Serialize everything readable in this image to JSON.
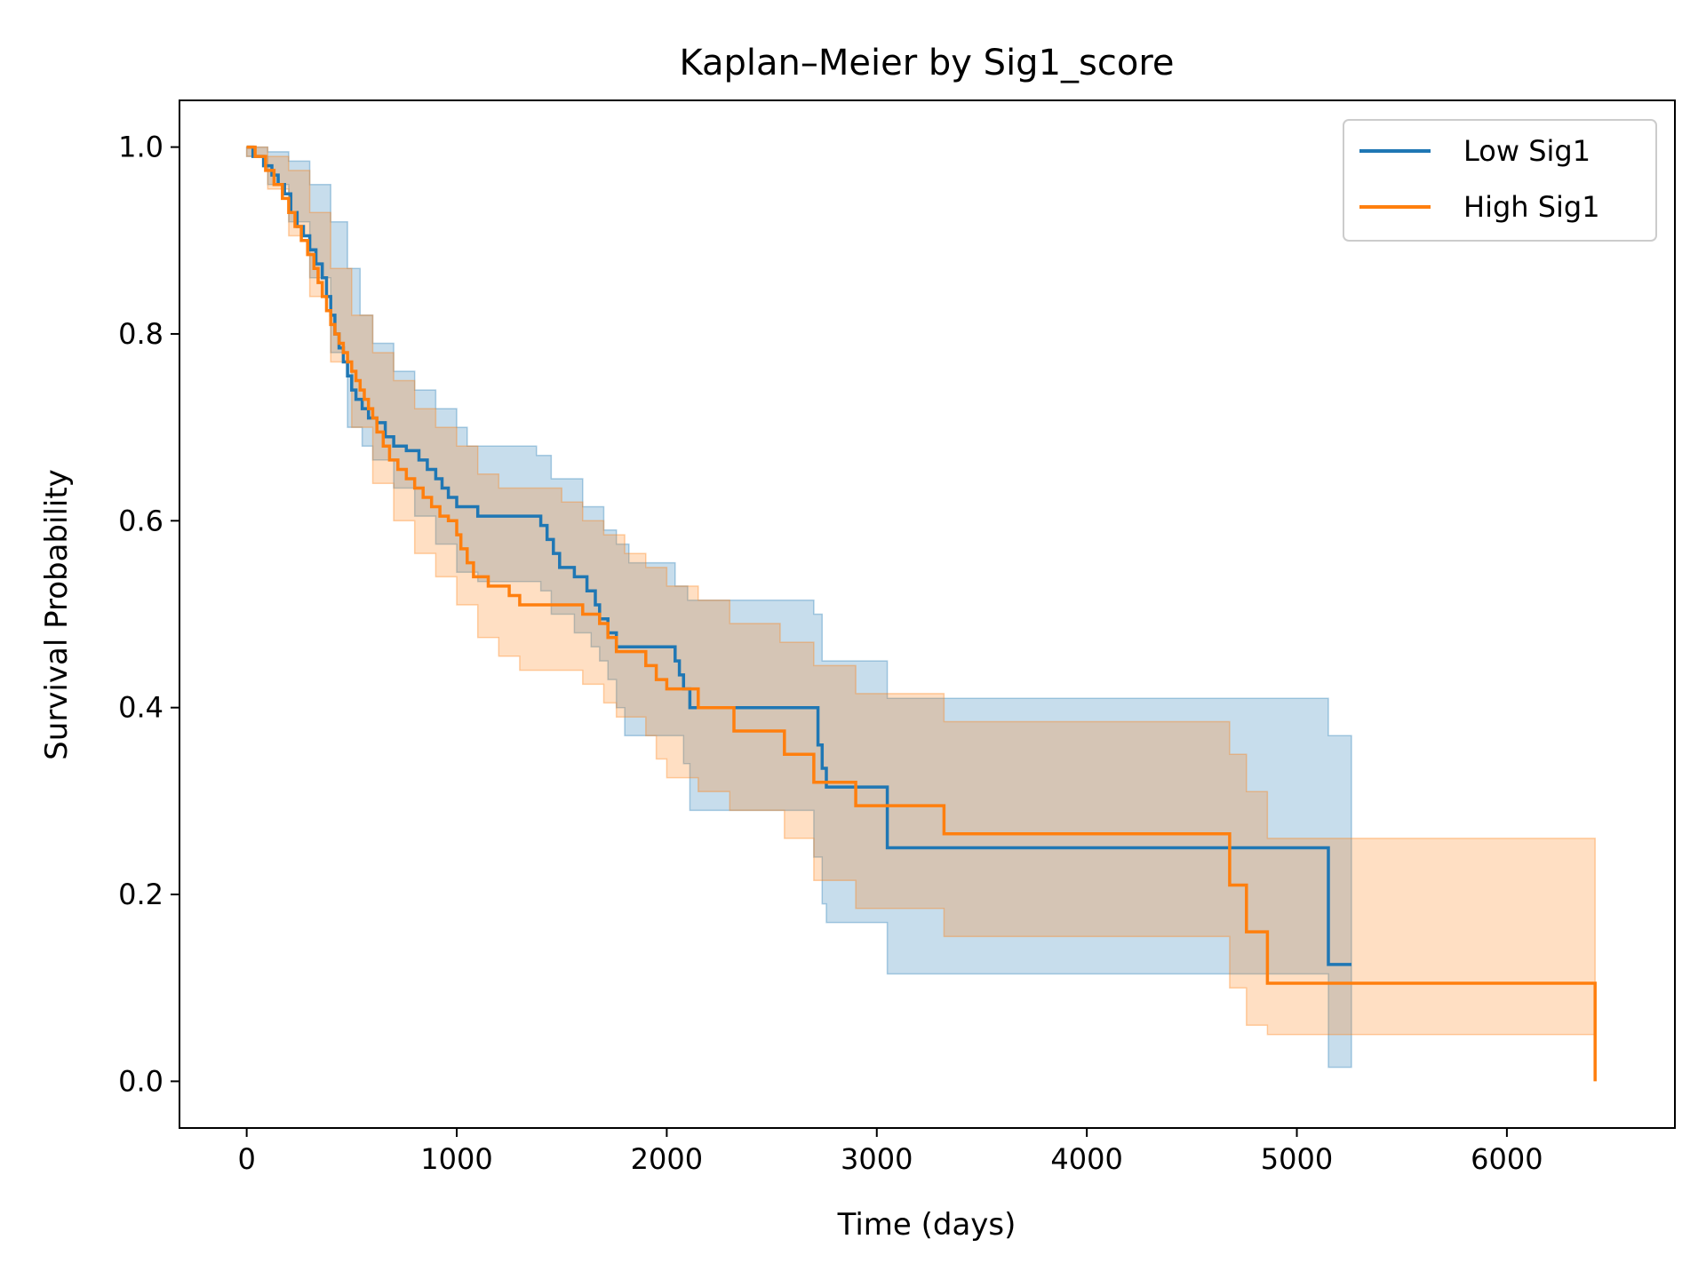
{
  "chart_data": {
    "type": "line",
    "title": "Kaplan–Meier by Sig1_score",
    "xlabel": "Time (days)",
    "ylabel": "Survival Probability",
    "xlim": [
      -320,
      6800
    ],
    "ylim": [
      -0.05,
      1.05
    ],
    "xticks": [
      0,
      1000,
      2000,
      3000,
      4000,
      5000,
      6000
    ],
    "yticks": [
      0.0,
      0.2,
      0.4,
      0.6,
      0.8,
      1.0
    ],
    "xtick_labels": [
      "0",
      "1000",
      "2000",
      "3000",
      "4000",
      "5000",
      "6000"
    ],
    "ytick_labels": [
      "0.0",
      "0.2",
      "0.4",
      "0.6",
      "0.8",
      "1.0"
    ],
    "grid": false,
    "legend_position": "top-right",
    "series": [
      {
        "name": "Low Sig1",
        "color": "#1f77b4",
        "steps": [
          [
            0,
            1.0
          ],
          [
            30,
            0.99
          ],
          [
            80,
            0.98
          ],
          [
            120,
            0.97
          ],
          [
            150,
            0.96
          ],
          [
            180,
            0.95
          ],
          [
            210,
            0.93
          ],
          [
            240,
            0.915
          ],
          [
            270,
            0.905
          ],
          [
            300,
            0.89
          ],
          [
            330,
            0.875
          ],
          [
            360,
            0.86
          ],
          [
            380,
            0.84
          ],
          [
            400,
            0.82
          ],
          [
            420,
            0.8
          ],
          [
            440,
            0.785
          ],
          [
            460,
            0.77
          ],
          [
            480,
            0.755
          ],
          [
            500,
            0.74
          ],
          [
            520,
            0.73
          ],
          [
            550,
            0.72
          ],
          [
            580,
            0.71
          ],
          [
            620,
            0.705
          ],
          [
            660,
            0.69
          ],
          [
            700,
            0.68
          ],
          [
            760,
            0.675
          ],
          [
            820,
            0.665
          ],
          [
            860,
            0.655
          ],
          [
            900,
            0.645
          ],
          [
            930,
            0.635
          ],
          [
            960,
            0.625
          ],
          [
            1000,
            0.615
          ],
          [
            1100,
            0.605
          ],
          [
            1400,
            0.595
          ],
          [
            1430,
            0.58
          ],
          [
            1460,
            0.565
          ],
          [
            1490,
            0.55
          ],
          [
            1560,
            0.54
          ],
          [
            1620,
            0.525
          ],
          [
            1660,
            0.51
          ],
          [
            1680,
            0.495
          ],
          [
            1720,
            0.48
          ],
          [
            1760,
            0.465
          ],
          [
            2040,
            0.45
          ],
          [
            2060,
            0.435
          ],
          [
            2080,
            0.42
          ],
          [
            2110,
            0.4
          ],
          [
            2720,
            0.36
          ],
          [
            2740,
            0.335
          ],
          [
            2760,
            0.315
          ],
          [
            3050,
            0.25
          ],
          [
            5150,
            0.125
          ],
          [
            5260,
            0.125
          ]
        ],
        "ci_upper": [
          [
            0,
            1.0
          ],
          [
            100,
            0.995
          ],
          [
            200,
            0.985
          ],
          [
            300,
            0.96
          ],
          [
            400,
            0.92
          ],
          [
            480,
            0.87
          ],
          [
            540,
            0.82
          ],
          [
            600,
            0.79
          ],
          [
            700,
            0.76
          ],
          [
            800,
            0.74
          ],
          [
            900,
            0.72
          ],
          [
            1000,
            0.7
          ],
          [
            1050,
            0.68
          ],
          [
            1380,
            0.67
          ],
          [
            1450,
            0.645
          ],
          [
            1600,
            0.615
          ],
          [
            1700,
            0.59
          ],
          [
            1760,
            0.575
          ],
          [
            1820,
            0.555
          ],
          [
            2040,
            0.53
          ],
          [
            2100,
            0.515
          ],
          [
            2700,
            0.5
          ],
          [
            2740,
            0.45
          ],
          [
            3050,
            0.41
          ],
          [
            5150,
            0.37
          ],
          [
            5260,
            0.37
          ]
        ],
        "ci_lower": [
          [
            0,
            0.99
          ],
          [
            100,
            0.96
          ],
          [
            200,
            0.92
          ],
          [
            300,
            0.86
          ],
          [
            400,
            0.78
          ],
          [
            480,
            0.7
          ],
          [
            550,
            0.68
          ],
          [
            600,
            0.665
          ],
          [
            700,
            0.635
          ],
          [
            800,
            0.605
          ],
          [
            900,
            0.575
          ],
          [
            1000,
            0.545
          ],
          [
            1100,
            0.535
          ],
          [
            1400,
            0.525
          ],
          [
            1450,
            0.5
          ],
          [
            1560,
            0.48
          ],
          [
            1640,
            0.465
          ],
          [
            1680,
            0.45
          ],
          [
            1720,
            0.43
          ],
          [
            1760,
            0.4
          ],
          [
            1800,
            0.37
          ],
          [
            2080,
            0.34
          ],
          [
            2110,
            0.29
          ],
          [
            2700,
            0.24
          ],
          [
            2740,
            0.19
          ],
          [
            2760,
            0.17
          ],
          [
            3050,
            0.115
          ],
          [
            5150,
            0.015
          ],
          [
            5260,
            0.015
          ]
        ]
      },
      {
        "name": "High Sig1",
        "color": "#ff7f0e",
        "steps": [
          [
            0,
            1.0
          ],
          [
            40,
            0.99
          ],
          [
            90,
            0.975
          ],
          [
            130,
            0.96
          ],
          [
            170,
            0.945
          ],
          [
            200,
            0.93
          ],
          [
            230,
            0.915
          ],
          [
            260,
            0.9
          ],
          [
            290,
            0.885
          ],
          [
            320,
            0.87
          ],
          [
            340,
            0.855
          ],
          [
            360,
            0.84
          ],
          [
            380,
            0.825
          ],
          [
            400,
            0.81
          ],
          [
            420,
            0.8
          ],
          [
            440,
            0.79
          ],
          [
            460,
            0.78
          ],
          [
            480,
            0.77
          ],
          [
            500,
            0.76
          ],
          [
            520,
            0.75
          ],
          [
            540,
            0.74
          ],
          [
            560,
            0.73
          ],
          [
            580,
            0.72
          ],
          [
            600,
            0.71
          ],
          [
            620,
            0.695
          ],
          [
            650,
            0.68
          ],
          [
            680,
            0.665
          ],
          [
            720,
            0.655
          ],
          [
            760,
            0.645
          ],
          [
            800,
            0.635
          ],
          [
            840,
            0.625
          ],
          [
            880,
            0.615
          ],
          [
            920,
            0.605
          ],
          [
            960,
            0.6
          ],
          [
            1000,
            0.585
          ],
          [
            1020,
            0.57
          ],
          [
            1050,
            0.555
          ],
          [
            1080,
            0.54
          ],
          [
            1150,
            0.53
          ],
          [
            1250,
            0.52
          ],
          [
            1300,
            0.51
          ],
          [
            1600,
            0.5
          ],
          [
            1680,
            0.49
          ],
          [
            1720,
            0.475
          ],
          [
            1760,
            0.46
          ],
          [
            1900,
            0.445
          ],
          [
            1950,
            0.43
          ],
          [
            2000,
            0.42
          ],
          [
            2150,
            0.4
          ],
          [
            2320,
            0.375
          ],
          [
            2560,
            0.35
          ],
          [
            2700,
            0.32
          ],
          [
            2900,
            0.295
          ],
          [
            3320,
            0.265
          ],
          [
            4680,
            0.21
          ],
          [
            4760,
            0.16
          ],
          [
            4860,
            0.105
          ],
          [
            6420,
            0.0
          ]
        ],
        "ci_upper": [
          [
            0,
            1.0
          ],
          [
            100,
            0.99
          ],
          [
            200,
            0.975
          ],
          [
            300,
            0.93
          ],
          [
            400,
            0.87
          ],
          [
            500,
            0.82
          ],
          [
            600,
            0.78
          ],
          [
            700,
            0.75
          ],
          [
            800,
            0.72
          ],
          [
            900,
            0.7
          ],
          [
            1000,
            0.68
          ],
          [
            1100,
            0.65
          ],
          [
            1200,
            0.635
          ],
          [
            1500,
            0.62
          ],
          [
            1600,
            0.6
          ],
          [
            1700,
            0.585
          ],
          [
            1800,
            0.565
          ],
          [
            1900,
            0.55
          ],
          [
            2000,
            0.53
          ],
          [
            2150,
            0.515
          ],
          [
            2300,
            0.49
          ],
          [
            2540,
            0.47
          ],
          [
            2700,
            0.445
          ],
          [
            2900,
            0.415
          ],
          [
            3320,
            0.385
          ],
          [
            4680,
            0.35
          ],
          [
            4760,
            0.31
          ],
          [
            4860,
            0.26
          ],
          [
            6420,
            0.26
          ]
        ],
        "ci_lower": [
          [
            0,
            0.99
          ],
          [
            100,
            0.955
          ],
          [
            200,
            0.905
          ],
          [
            300,
            0.84
          ],
          [
            400,
            0.77
          ],
          [
            500,
            0.7
          ],
          [
            600,
            0.64
          ],
          [
            700,
            0.6
          ],
          [
            800,
            0.565
          ],
          [
            900,
            0.54
          ],
          [
            1000,
            0.51
          ],
          [
            1100,
            0.475
          ],
          [
            1200,
            0.455
          ],
          [
            1300,
            0.44
          ],
          [
            1600,
            0.425
          ],
          [
            1700,
            0.405
          ],
          [
            1760,
            0.39
          ],
          [
            1900,
            0.37
          ],
          [
            1950,
            0.345
          ],
          [
            2000,
            0.325
          ],
          [
            2150,
            0.31
          ],
          [
            2300,
            0.29
          ],
          [
            2560,
            0.26
          ],
          [
            2700,
            0.215
          ],
          [
            2900,
            0.185
          ],
          [
            3320,
            0.155
          ],
          [
            4680,
            0.1
          ],
          [
            4760,
            0.06
          ],
          [
            4860,
            0.05
          ],
          [
            6420,
            0.05
          ]
        ]
      }
    ]
  }
}
